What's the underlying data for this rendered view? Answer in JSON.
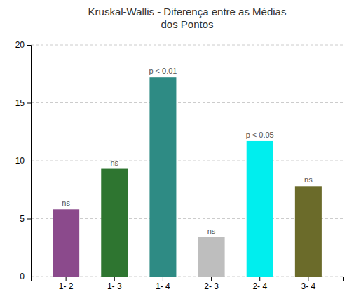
{
  "chart_data": {
    "type": "bar",
    "title": "Kruskal-Wallis - Diferença entre as Médias\ndos Pontos",
    "categories": [
      "1- 2",
      "1- 3",
      "1- 4",
      "2- 3",
      "2- 4",
      "3- 4"
    ],
    "values": [
      5.8,
      9.3,
      17.2,
      3.4,
      11.7,
      7.8
    ],
    "colors": [
      "#8B4A8C",
      "#2E7530",
      "#2E8B84",
      "#BEBEBE",
      "#00EEEE",
      "#6B6B2A"
    ],
    "annotations": [
      "ns",
      "ns",
      "p < 0.01",
      "ns",
      "p < 0.05",
      "ns"
    ],
    "ylim": [
      0,
      20
    ],
    "yticks": [
      0,
      5,
      10,
      15,
      20
    ],
    "grid": true
  }
}
